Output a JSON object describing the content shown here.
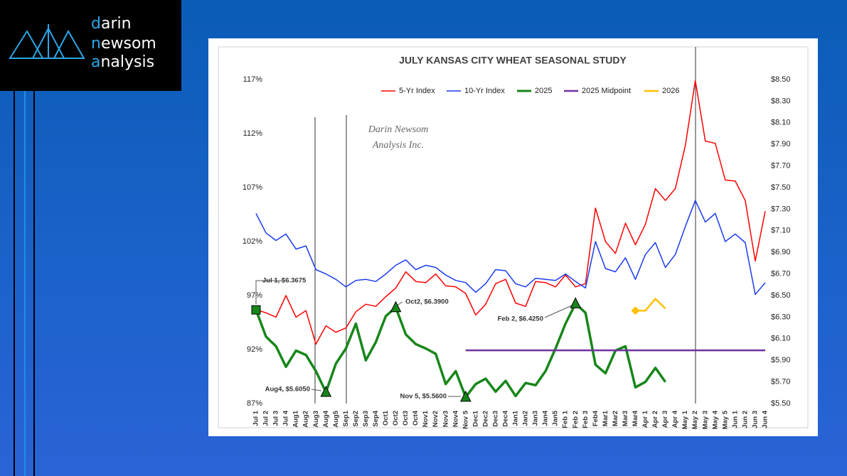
{
  "logo": {
    "lines": [
      "darin",
      "newsom",
      "analysis"
    ]
  },
  "chart_data": {
    "type": "line",
    "title": "JULY KANSAS CITY WHEAT SEASONAL STUDY",
    "watermark": [
      "Darin Newsom",
      "Analysis Inc."
    ],
    "categories": [
      "Jul 1",
      "Jul 2",
      "Jul 3",
      "Jul 4",
      "Aug1",
      "Aug2",
      "Aug3",
      "Aug4",
      "Aug5",
      "Sep1",
      "Sep2",
      "Sep3",
      "Sep4",
      "Oct1",
      "Oct2",
      "Oct3",
      "Oct4",
      "Nov1",
      "Nov2",
      "Nov3",
      "Nov4",
      "Nov 5",
      "Dec1",
      "Dec2",
      "Dec3",
      "Dec4",
      "Jan1",
      "Jan2",
      "Jan3",
      "Jan4",
      "Jan5",
      "Feb 1",
      "Feb 2",
      "Feb 3",
      "Feb4",
      "Mar1",
      "Mar2",
      "Mar3",
      "Mar4",
      "Apr 1",
      "Apr 2",
      "Apr 3",
      "Apr 4",
      "May 1",
      "May 2",
      "May 3",
      "May 4",
      "May 5",
      "Jun 1",
      "Jun 2",
      "Jun 3",
      "Jun 4"
    ],
    "ylim": [
      87,
      117
    ],
    "yticks": [
      {
        "value": 117,
        "label": "117%"
      },
      {
        "value": 112,
        "label": "112%"
      },
      {
        "value": 107,
        "label": "107%"
      },
      {
        "value": 102,
        "label": "102%"
      },
      {
        "value": 97,
        "label": "97%"
      },
      {
        "value": 92,
        "label": "92%"
      },
      {
        "value": 87,
        "label": "87%"
      }
    ],
    "y2lim": [
      5.5,
      8.5
    ],
    "y2ticks": [
      {
        "value": 8.5,
        "label": "$8.50"
      },
      {
        "value": 8.3,
        "label": "$8.30"
      },
      {
        "value": 8.1,
        "label": "$8.10"
      },
      {
        "value": 7.9,
        "label": "$7.90"
      },
      {
        "value": 7.7,
        "label": "$7.70"
      },
      {
        "value": 7.5,
        "label": "$7.50"
      },
      {
        "value": 7.3,
        "label": "$7.30"
      },
      {
        "value": 7.1,
        "label": "$7.10"
      },
      {
        "value": 6.9,
        "label": "$6.90"
      },
      {
        "value": 6.7,
        "label": "$6.70"
      },
      {
        "value": 6.5,
        "label": "$6.50"
      },
      {
        "value": 6.3,
        "label": "$6.30"
      },
      {
        "value": 6.1,
        "label": "$6.10"
      },
      {
        "value": 5.9,
        "label": "$5.90"
      },
      {
        "value": 5.7,
        "label": "$5.70"
      },
      {
        "value": 5.5,
        "label": "$5.50"
      }
    ],
    "grid": false,
    "legend": "top",
    "series": [
      {
        "name": "5-Yr Index",
        "color": "#ff0000",
        "width": 1.5,
        "values": [
          95.7,
          95.4,
          95.0,
          97.0,
          95.0,
          95.6,
          92.5,
          94.2,
          93.6,
          94.0,
          95.5,
          96.2,
          96.0,
          96.9,
          97.7,
          99.2,
          98.3,
          98.2,
          99.0,
          97.9,
          97.8,
          97.2,
          95.2,
          96.2,
          98.1,
          98.5,
          96.3,
          96.0,
          98.3,
          98.2,
          97.8,
          98.9,
          97.8,
          98.1,
          105.1,
          102.0,
          100.9,
          103.7,
          101.7,
          103.6,
          106.9,
          105.8,
          106.9,
          110.9,
          116.9,
          111.3,
          111.1,
          107.7,
          107.6,
          105.8,
          100.2,
          104.8
        ]
      },
      {
        "name": "10-Yr Index",
        "color": "#1a3cf0",
        "width": 1.5,
        "values": [
          104.6,
          102.8,
          102.1,
          102.7,
          101.3,
          101.6,
          99.4,
          99.0,
          98.5,
          97.8,
          98.4,
          98.5,
          98.3,
          99.0,
          99.8,
          100.3,
          99.4,
          99.8,
          99.6,
          98.9,
          98.4,
          98.2,
          97.3,
          98.1,
          99.4,
          99.3,
          98.1,
          97.8,
          98.6,
          98.5,
          98.4,
          99.0,
          98.3,
          97.7,
          102.0,
          99.5,
          99.2,
          100.5,
          98.5,
          100.8,
          101.9,
          99.6,
          100.8,
          103.4,
          105.8,
          103.8,
          104.6,
          102.0,
          102.7,
          101.9,
          97.1,
          98.2
        ]
      },
      {
        "name": "2025",
        "color": "#17861a",
        "width": 3.5,
        "axis": "y2",
        "markers": {
          "square": [
            0
          ],
          "triangle": [
            7,
            14,
            21,
            32
          ]
        },
        "values": [
          6.3675,
          6.12,
          6.03,
          5.84,
          5.99,
          5.95,
          5.8,
          5.605,
          5.87,
          6.01,
          6.24,
          5.9,
          6.07,
          6.31,
          6.39,
          6.14,
          6.05,
          6.01,
          5.96,
          5.68,
          5.8,
          5.56,
          5.68,
          5.73,
          5.61,
          5.71,
          5.57,
          5.69,
          5.67,
          5.8,
          6.01,
          6.24,
          6.425,
          6.34,
          5.86,
          5.78,
          5.99,
          6.03,
          5.65,
          5.7,
          5.83,
          5.7,
          null,
          null,
          null,
          null,
          null,
          null,
          null,
          null,
          null,
          null
        ]
      },
      {
        "name": "2025 Midpoint",
        "color": "#7030a0",
        "width": 2.5,
        "axis": "y2",
        "values": [
          null,
          null,
          null,
          null,
          null,
          null,
          null,
          null,
          null,
          null,
          null,
          null,
          null,
          null,
          null,
          null,
          null,
          null,
          null,
          null,
          null,
          5.9925,
          5.9925,
          5.9925,
          5.9925,
          5.9925,
          5.9925,
          5.9925,
          5.9925,
          5.9925,
          5.9925,
          5.9925,
          5.9925,
          5.9925,
          5.9925,
          5.9925,
          5.9925,
          5.9925,
          5.9925,
          5.9925,
          5.9925,
          5.9925,
          5.9925,
          5.9925,
          5.9925,
          5.9925,
          5.9925,
          5.9925,
          5.9925,
          5.9925,
          5.9925,
          5.9925
        ]
      },
      {
        "name": "2026",
        "color": "#ffc000",
        "width": 2.5,
        "axis": "y2",
        "markers": {
          "diamond": [
            38
          ]
        },
        "values": [
          null,
          null,
          null,
          null,
          null,
          null,
          null,
          null,
          null,
          null,
          null,
          null,
          null,
          null,
          null,
          null,
          null,
          null,
          null,
          null,
          null,
          null,
          null,
          null,
          null,
          null,
          null,
          null,
          null,
          null,
          null,
          null,
          null,
          null,
          null,
          null,
          null,
          null,
          6.36,
          6.36,
          6.47,
          6.38,
          null,
          null,
          null,
          null,
          null,
          null,
          null,
          null,
          null,
          null
        ]
      }
    ],
    "annotations": [
      "Jul 1, $6.3675",
      "Aug4, $5.6050",
      "Oct2, $6.3900",
      "Nov 5, $5.5600",
      "Feb 2, $6.4250"
    ]
  }
}
